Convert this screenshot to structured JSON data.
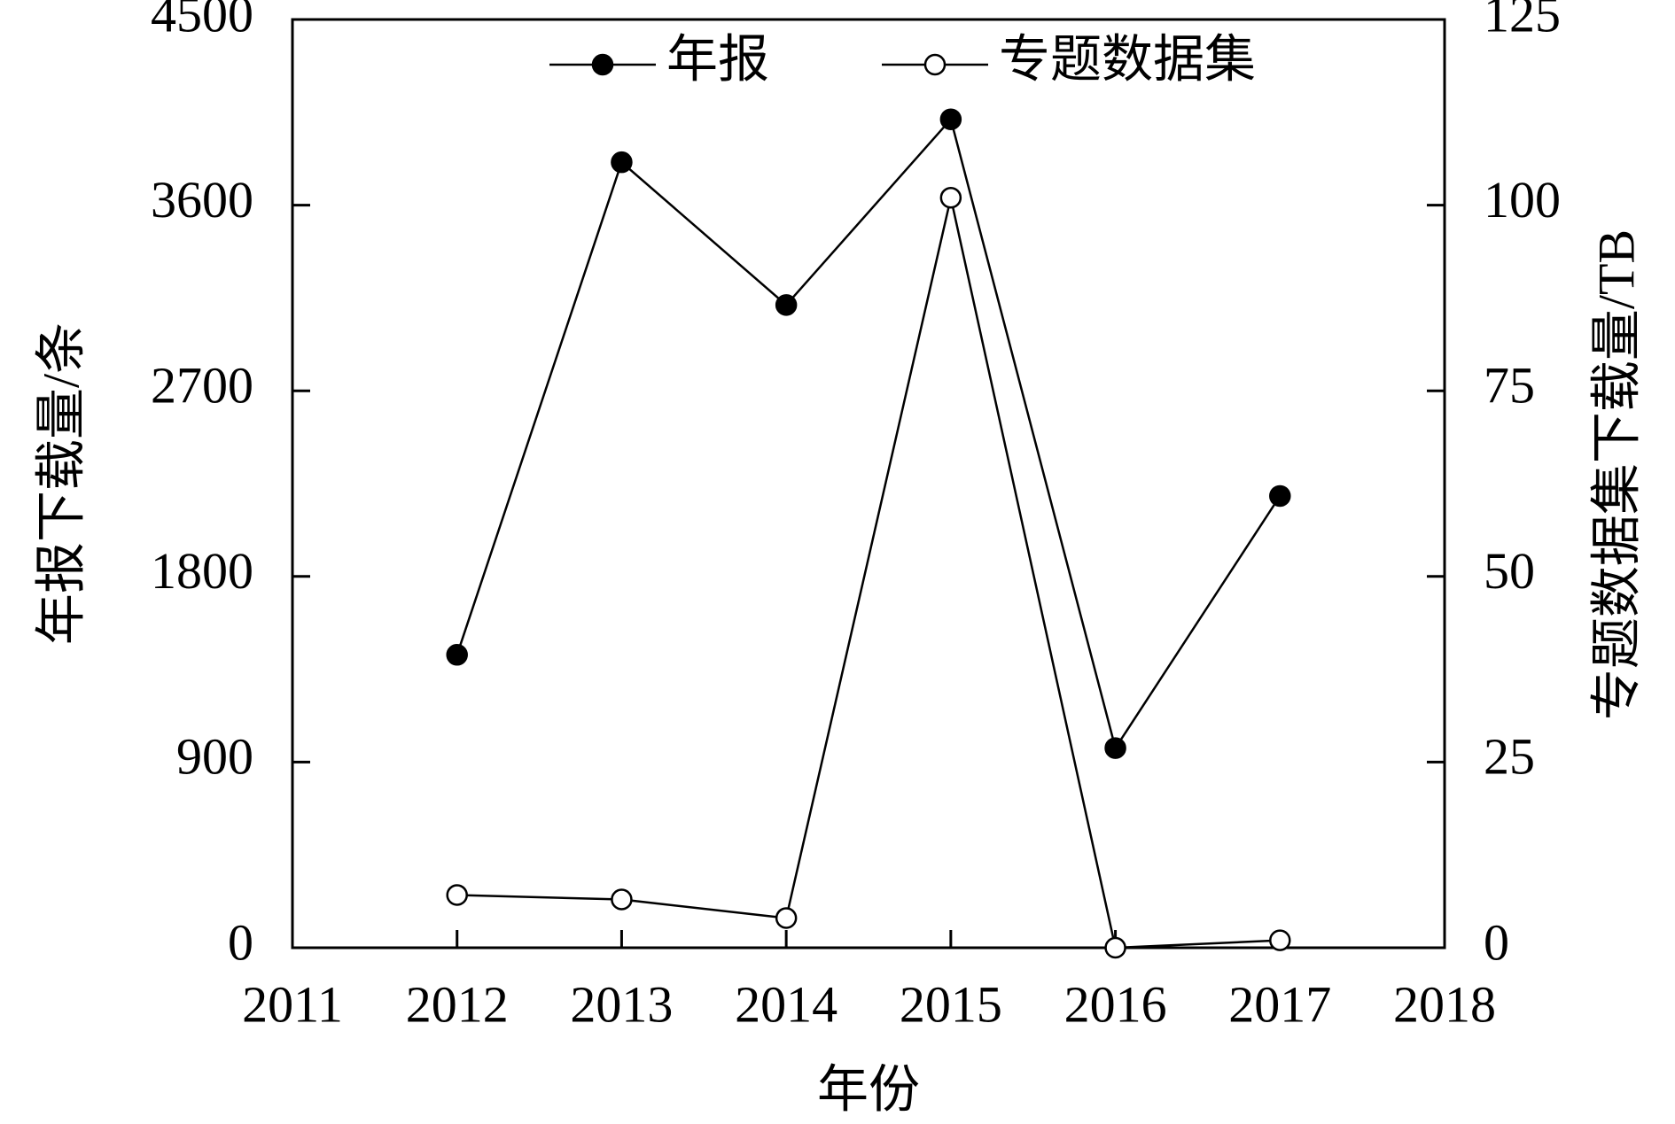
{
  "chart_data": {
    "type": "line",
    "x": [
      2012,
      2013,
      2014,
      2015,
      2016,
      2017
    ],
    "xlabel": "年份",
    "ylabel": "年报下载量/条",
    "y2label": "专题数据集下载量/TB",
    "xlim": [
      2011,
      2018
    ],
    "xticks": [
      2011,
      2012,
      2013,
      2014,
      2015,
      2016,
      2017,
      2018
    ],
    "ylim": [
      0,
      4500
    ],
    "yticks": [
      0,
      900,
      1800,
      2700,
      3600,
      4500
    ],
    "y2lim": [
      0,
      125
    ],
    "y2ticks": [
      0,
      25,
      50,
      75,
      100,
      125
    ],
    "grid": false,
    "legend": "top",
    "series": [
      {
        "name": "年报",
        "color": "#000000",
        "marker": "filled",
        "values": [
          1420,
          3808,
          3116,
          4016,
          968,
          2190
        ]
      },
      {
        "name": "专题数据集",
        "color": "#000000",
        "marker": "open",
        "axis": "y2",
        "values": [
          7.1,
          6.5,
          4.0,
          101,
          0,
          1.0
        ]
      }
    ]
  }
}
